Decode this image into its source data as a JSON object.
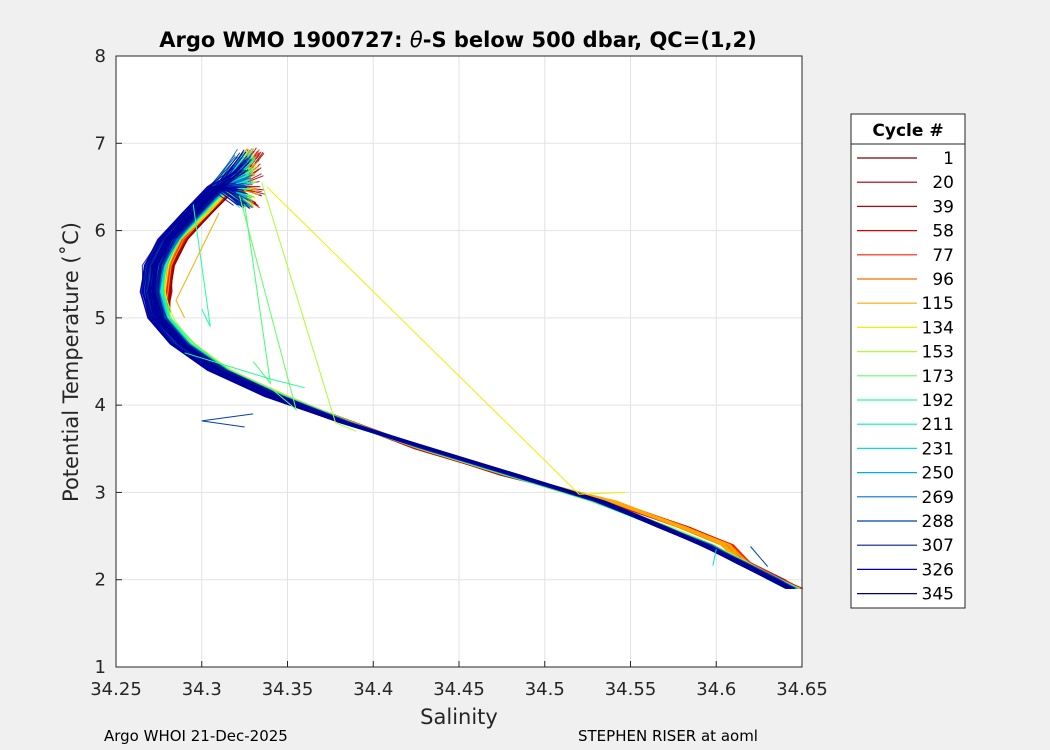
{
  "chart_data": {
    "type": "line",
    "title": "Argo WMO 1900727: θ-S below 500 dbar,  QC=(1,2)",
    "title_prefix": "Argo WMO 1900727: ",
    "title_theta": "θ",
    "title_suffix": "-S below 500 dbar,  QC=(1,2)",
    "xlabel": "Salinity",
    "ylabel": "Potential Temperature (˚C)",
    "xlim": [
      34.25,
      34.65
    ],
    "ylim": [
      1,
      8
    ],
    "xticks": [
      "34.25",
      "34.3",
      "34.35",
      "34.4",
      "34.45",
      "34.5",
      "34.55",
      "34.6",
      "34.65"
    ],
    "yticks": [
      "1",
      "2",
      "3",
      "4",
      "5",
      "6",
      "7",
      "8"
    ],
    "grid": true,
    "legend_title": "Cycle #",
    "legend_position": "right-outside",
    "series": [
      {
        "name": "1",
        "color": "#800000"
      },
      {
        "name": "20",
        "color": "#a00000"
      },
      {
        "name": "39",
        "color": "#c00000"
      },
      {
        "name": "58",
        "color": "#e00000"
      },
      {
        "name": "77",
        "color": "#ff2000"
      },
      {
        "name": "96",
        "color": "#ff6a00"
      },
      {
        "name": "115",
        "color": "#ffaa00"
      },
      {
        "name": "134",
        "color": "#f0f000"
      },
      {
        "name": "153",
        "color": "#aaff30"
      },
      {
        "name": "173",
        "color": "#60ff60"
      },
      {
        "name": "192",
        "color": "#20ff90"
      },
      {
        "name": "211",
        "color": "#00f0c0"
      },
      {
        "name": "231",
        "color": "#00e0e0"
      },
      {
        "name": "250",
        "color": "#00b0e0"
      },
      {
        "name": "269",
        "color": "#0070d0"
      },
      {
        "name": "288",
        "color": "#0040b0"
      },
      {
        "name": "307",
        "color": "#002090"
      },
      {
        "name": "326",
        "color": "#0000b0"
      },
      {
        "name": "345",
        "color": "#000090"
      }
    ],
    "profile_shape": {
      "theta": [
        6.8,
        6.5,
        6.2,
        5.9,
        5.6,
        5.3,
        5.0,
        4.7,
        4.4,
        4.1,
        3.8,
        3.5,
        3.2,
        2.9,
        2.6,
        2.4,
        2.2,
        2.0,
        1.9
      ],
      "salinity": [
        34.327,
        34.312,
        34.297,
        34.283,
        34.275,
        34.273,
        34.277,
        34.29,
        34.312,
        34.345,
        34.385,
        34.43,
        34.48,
        34.53,
        34.57,
        34.595,
        34.615,
        34.635,
        34.645
      ]
    }
  },
  "footer": {
    "left": "Argo WHOI 21-Dec-2025",
    "right": "STEPHEN RISER at aoml"
  }
}
